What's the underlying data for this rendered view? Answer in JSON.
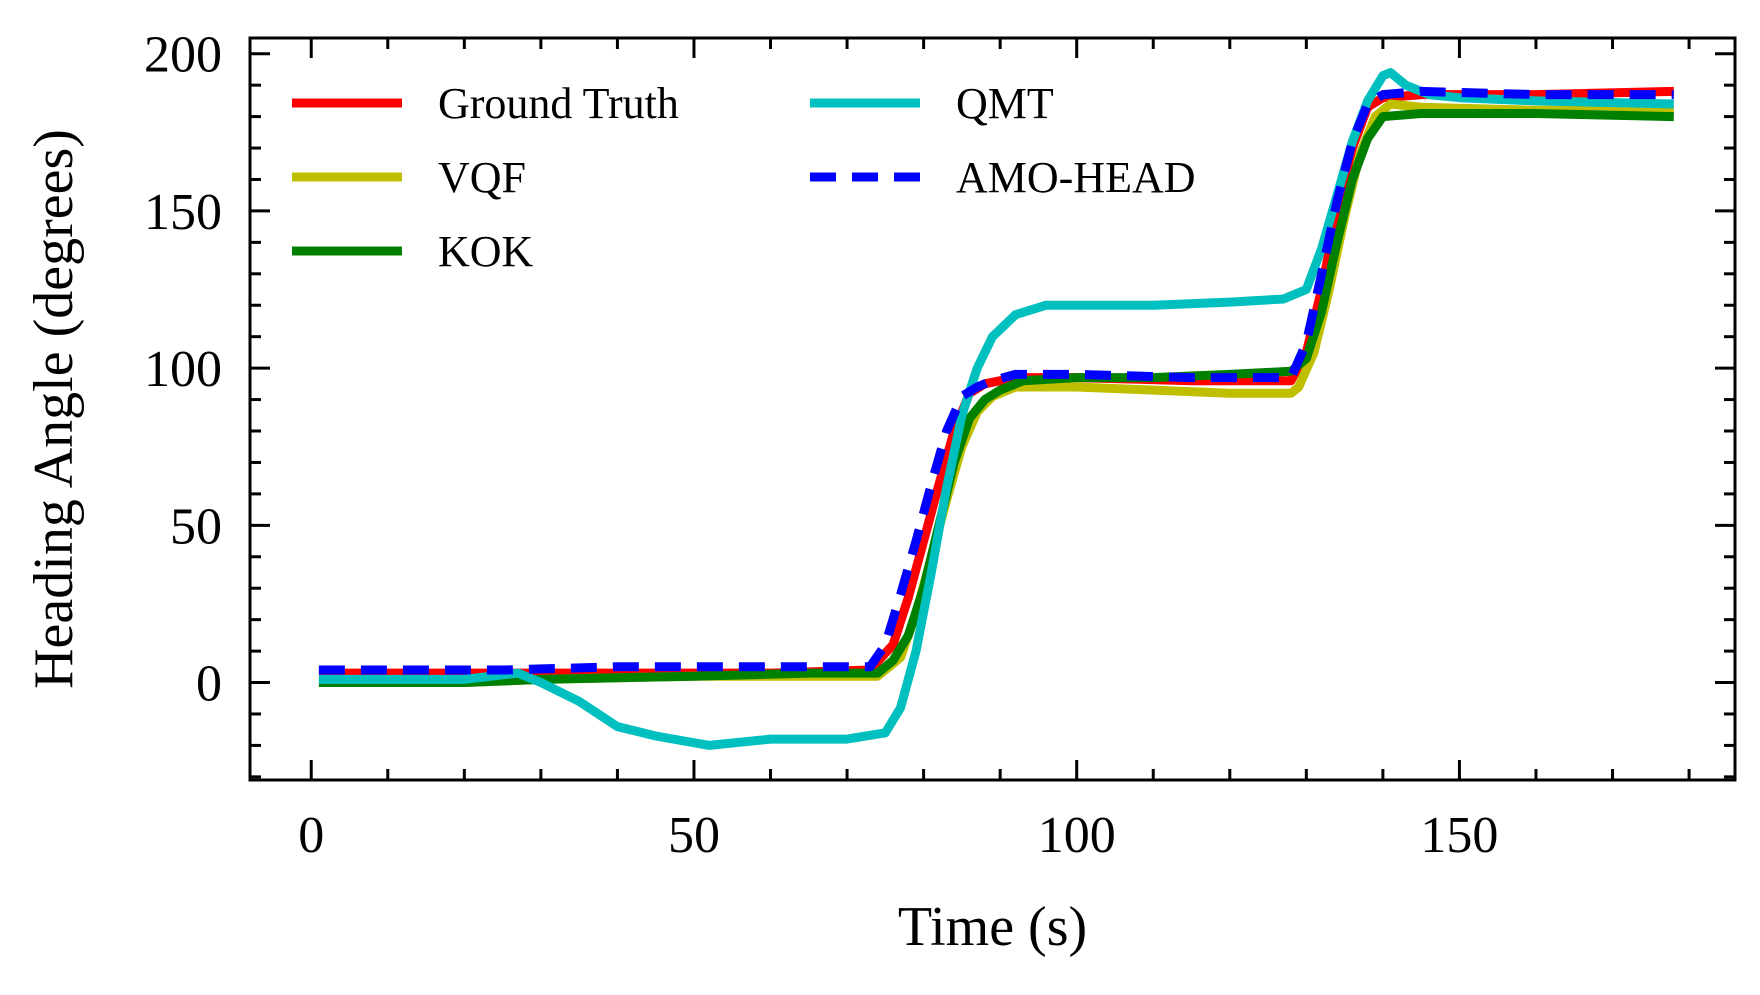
{
  "chart_data": {
    "type": "line",
    "title": "",
    "xlabel": "Time (s)",
    "ylabel": "Heading Angle (degrees)",
    "xlim": [
      -8,
      186
    ],
    "ylim": [
      -31,
      205
    ],
    "xticks": [
      0,
      50,
      100,
      150
    ],
    "yticks": [
      0,
      50,
      100,
      150,
      200
    ],
    "grid": false,
    "legend_position": "top-left",
    "series": [
      {
        "name": "Ground Truth",
        "color": "#ff0000",
        "style": "solid",
        "x": [
          1,
          25,
          40,
          60,
          73,
          76,
          78,
          80,
          82,
          84,
          86,
          88,
          92,
          100,
          115,
          128,
          130,
          132,
          134,
          136,
          138,
          140,
          145,
          160,
          178
        ],
        "y": [
          3,
          3,
          3,
          3,
          4,
          12,
          27,
          45,
          63,
          80,
          92,
          95,
          97,
          97,
          96,
          96,
          105,
          125,
          150,
          170,
          183,
          186,
          187,
          187,
          188
        ]
      },
      {
        "name": "VQF",
        "color": "#bfbf00",
        "style": "solid",
        "x": [
          1,
          20,
          30,
          50,
          65,
          74,
          77,
          79,
          81,
          83,
          85,
          87,
          89,
          92,
          100,
          110,
          120,
          128,
          129,
          131,
          133,
          135,
          137,
          139,
          141,
          145,
          160,
          178
        ],
        "y": [
          0,
          0,
          1,
          2,
          2,
          2,
          8,
          22,
          40,
          58,
          75,
          86,
          91,
          94,
          94,
          93,
          92,
          92,
          94,
          105,
          125,
          148,
          168,
          180,
          184,
          183,
          182,
          182
        ]
      },
      {
        "name": "KOK",
        "color": "#008000",
        "style": "solid",
        "x": [
          1,
          20,
          30,
          50,
          65,
          74,
          76,
          78,
          80,
          82,
          84,
          86,
          88,
          90,
          93,
          100,
          110,
          120,
          128,
          130,
          132,
          134,
          136,
          138,
          140,
          145,
          160,
          178
        ],
        "y": [
          0,
          0,
          1,
          2,
          3,
          3,
          7,
          15,
          30,
          50,
          70,
          84,
          90,
          93,
          96,
          97,
          97,
          98,
          99,
          103,
          118,
          140,
          160,
          173,
          180,
          181,
          181,
          180
        ]
      },
      {
        "name": "QMT",
        "color": "#00bfbf",
        "style": "solid",
        "x": [
          1,
          20,
          27,
          30,
          35,
          40,
          45,
          52,
          60,
          70,
          75,
          77,
          79,
          81,
          83,
          85,
          87,
          89,
          92,
          96,
          100,
          110,
          120,
          127,
          130,
          132,
          134,
          136,
          138,
          140,
          141,
          143,
          146,
          150,
          160,
          178
        ],
        "y": [
          1,
          1,
          3,
          0,
          -6,
          -14,
          -17,
          -20,
          -18,
          -18,
          -16,
          -8,
          10,
          35,
          62,
          85,
          100,
          110,
          117,
          120,
          120,
          120,
          121,
          122,
          125,
          138,
          155,
          172,
          185,
          193,
          194,
          190,
          187,
          186,
          185,
          184
        ]
      },
      {
        "name": "AMO-HEAD",
        "color": "#0000ff",
        "style": "dashed",
        "x": [
          1,
          25,
          40,
          60,
          73,
          75,
          77,
          79,
          81,
          83,
          85,
          87,
          89,
          92,
          100,
          115,
          128,
          130,
          132,
          134,
          136,
          138,
          140,
          145,
          160,
          178
        ],
        "y": [
          4,
          4,
          5,
          5,
          5,
          12,
          28,
          45,
          63,
          80,
          91,
          94,
          96,
          98,
          98,
          97,
          97,
          108,
          130,
          153,
          172,
          184,
          187,
          188,
          187,
          187
        ]
      }
    ]
  }
}
